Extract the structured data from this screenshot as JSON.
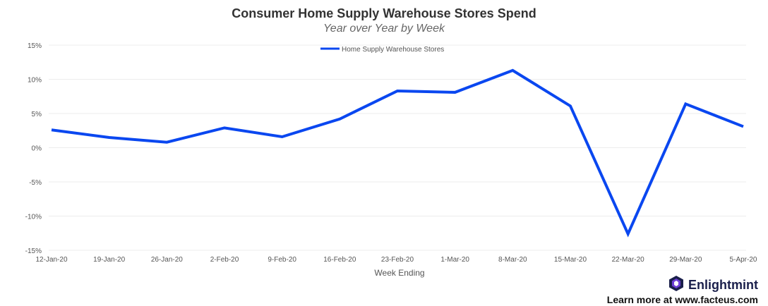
{
  "chart_data": {
    "type": "line",
    "title": "Consumer Home Supply Warehouse Stores Spend",
    "subtitle": "Year over Year by Week",
    "xlabel": "Week Ending",
    "ylabel": "",
    "categories": [
      "12-Jan-20",
      "19-Jan-20",
      "26-Jan-20",
      "2-Feb-20",
      "9-Feb-20",
      "16-Feb-20",
      "23-Feb-20",
      "1-Mar-20",
      "8-Mar-20",
      "15-Mar-20",
      "22-Mar-20",
      "29-Mar-20",
      "5-Apr-20"
    ],
    "series": [
      {
        "name": "Home Supply Warehouse Stores",
        "color": "#0a47f0",
        "values": [
          2.6,
          1.5,
          0.8,
          2.9,
          1.6,
          4.2,
          8.3,
          8.1,
          11.3,
          6.1,
          -12.6,
          6.4,
          3.1
        ]
      }
    ],
    "ylim": [
      -15,
      15
    ],
    "yticks": [
      15,
      10,
      5,
      0,
      -5,
      -10,
      -15
    ],
    "ytick_labels": [
      "15%",
      "10%",
      "5%",
      "0%",
      "-5%",
      "-10%",
      "-15%"
    ],
    "grid": true,
    "legend_position": "top-center"
  },
  "branding": {
    "name": "Enlightmint",
    "logo_icon": "hexagon-logo-icon",
    "logo_colors": [
      "#1a1f4b",
      "#6c3fd6"
    ],
    "learn_more": "Learn more at www.facteus.com"
  }
}
